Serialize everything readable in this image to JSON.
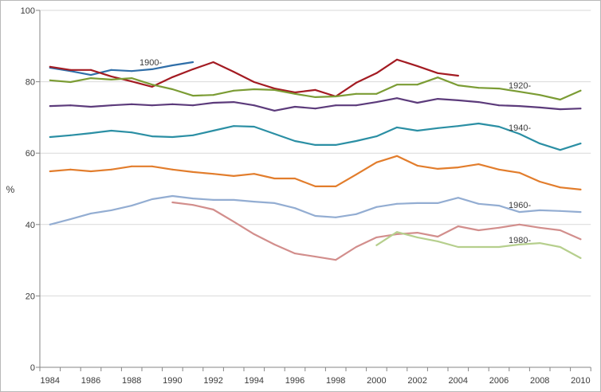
{
  "chart_data": {
    "type": "line",
    "x": [
      1984,
      1985,
      1986,
      1987,
      1988,
      1989,
      1990,
      1991,
      1992,
      1993,
      1994,
      1995,
      1996,
      1997,
      1998,
      1999,
      2000,
      2001,
      2002,
      2003,
      2004,
      2005,
      2006,
      2007,
      2008,
      2009,
      2010
    ],
    "xtick_labels": [
      "1984",
      "1986",
      "1988",
      "1990",
      "1992",
      "1994",
      "1996",
      "1998",
      "2000",
      "2002",
      "2004",
      "2006",
      "2008",
      "2010"
    ],
    "yticks": [
      0,
      20,
      40,
      60,
      80,
      100
    ],
    "ytick_labels": [
      "0",
      "20",
      "40",
      "60",
      "80",
      "100"
    ],
    "ylabel": "%",
    "xlim": [
      1984,
      2010
    ],
    "ylim": [
      0,
      100
    ],
    "grid": "horizontal",
    "legend": "none",
    "series": [
      {
        "name": "1900-",
        "color": "#2f6ea8",
        "values": [
          83.9,
          83.0,
          81.9,
          83.3,
          83.0,
          83.5,
          84.6,
          85.5,
          null,
          null,
          null,
          null,
          null,
          null,
          null,
          null,
          null,
          null,
          null,
          null,
          null,
          null,
          null,
          null,
          null,
          null,
          null
        ]
      },
      {
        "color": "#a31b22",
        "values": [
          84.2,
          83.3,
          83.3,
          81.5,
          80.1,
          78.6,
          81.3,
          83.5,
          85.5,
          82.8,
          79.9,
          78.1,
          77.0,
          77.7,
          75.9,
          79.7,
          82.4,
          86.2,
          84.4,
          82.4,
          81.7,
          null,
          null,
          null,
          null,
          null,
          null
        ]
      },
      {
        "name": "1920-",
        "color": "#7b9c34",
        "values": [
          80.4,
          79.9,
          81.0,
          80.6,
          81.0,
          79.2,
          77.9,
          76.1,
          76.3,
          77.5,
          77.9,
          77.7,
          76.6,
          75.7,
          75.9,
          76.6,
          76.6,
          79.2,
          79.2,
          81.2,
          79.0,
          78.3,
          78.1,
          77.2,
          76.3,
          75.0,
          77.5
        ]
      },
      {
        "color": "#5c3b7b",
        "values": [
          73.2,
          73.4,
          73.0,
          73.4,
          73.7,
          73.4,
          73.7,
          73.4,
          74.1,
          74.3,
          73.4,
          71.9,
          73.0,
          72.5,
          73.4,
          73.4,
          74.3,
          75.4,
          74.1,
          75.2,
          74.8,
          74.3,
          73.4,
          73.2,
          72.8,
          72.3,
          72.5
        ]
      },
      {
        "name": "1940-",
        "color": "#2b8fa4",
        "values": [
          64.5,
          65.0,
          65.6,
          66.3,
          65.8,
          64.7,
          64.5,
          65.0,
          66.3,
          67.6,
          67.4,
          65.4,
          63.4,
          62.3,
          62.3,
          63.4,
          64.7,
          67.2,
          66.3,
          67.0,
          67.6,
          68.3,
          67.4,
          65.4,
          62.7,
          60.9,
          62.7
        ]
      },
      {
        "color": "#e27d2c",
        "values": [
          54.9,
          55.4,
          54.9,
          55.4,
          56.3,
          56.3,
          55.4,
          54.7,
          54.2,
          53.6,
          54.2,
          52.9,
          52.9,
          50.7,
          50.7,
          54.0,
          57.4,
          59.2,
          56.5,
          55.6,
          56.0,
          56.9,
          55.4,
          54.5,
          52.0,
          50.4,
          49.8
        ]
      },
      {
        "name": "1960-",
        "color": "#93add2",
        "values": [
          40.0,
          41.5,
          43.1,
          44.0,
          45.3,
          47.1,
          48.0,
          47.3,
          46.9,
          46.9,
          46.4,
          46.0,
          44.6,
          42.4,
          42.0,
          42.9,
          44.9,
          45.8,
          46.0,
          46.0,
          47.5,
          45.8,
          45.3,
          43.5,
          44.0,
          43.8,
          43.5
        ]
      },
      {
        "color": "#d28e8c",
        "values": [
          null,
          null,
          null,
          null,
          null,
          null,
          46.2,
          45.5,
          44.2,
          40.8,
          37.3,
          34.4,
          31.9,
          31.0,
          30.1,
          33.7,
          36.4,
          37.3,
          37.7,
          36.6,
          39.5,
          38.4,
          39.1,
          40.0,
          39.1,
          38.4,
          35.9
        ]
      },
      {
        "name": "1980-",
        "color": "#b6cf8d",
        "values": [
          null,
          null,
          null,
          null,
          null,
          null,
          null,
          null,
          null,
          null,
          null,
          null,
          null,
          null,
          null,
          null,
          34.2,
          37.9,
          36.4,
          35.3,
          33.7,
          33.7,
          33.7,
          34.4,
          34.8,
          33.7,
          30.6
        ]
      }
    ]
  }
}
